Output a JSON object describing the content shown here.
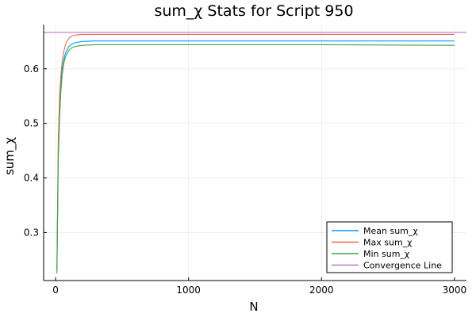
{
  "chart_data": {
    "type": "line",
    "title": "sum_χ Stats for Script 950",
    "xlabel": "N",
    "ylabel": "sum_χ",
    "xlim": [
      -90,
      3090
    ],
    "ylim": [
      0.212,
      0.681
    ],
    "xticks": [
      0,
      1000,
      2000,
      3000
    ],
    "xtick_labels": [
      "0",
      "1000",
      "2000",
      "3000"
    ],
    "yticks": [
      0.3,
      0.4,
      0.5,
      0.6
    ],
    "ytick_labels": [
      "0.3",
      "0.4",
      "0.5",
      "0.6"
    ],
    "grid": true,
    "legend_position": "bottom-right",
    "series": [
      {
        "name": "Mean sum_χ",
        "color": "#009AFA",
        "x": [
          10,
          20,
          30,
          40,
          50,
          60,
          70,
          80,
          100,
          120,
          150,
          200,
          300,
          500,
          1000,
          2000,
          3000
        ],
        "y": [
          0.23,
          0.45,
          0.53,
          0.575,
          0.6,
          0.615,
          0.625,
          0.632,
          0.641,
          0.645,
          0.648,
          0.65,
          0.651,
          0.651,
          0.651,
          0.651,
          0.651
        ]
      },
      {
        "name": "Max sum_χ",
        "color": "#E36F47",
        "x": [
          10,
          20,
          30,
          40,
          50,
          60,
          70,
          80,
          100,
          120,
          150,
          200,
          300,
          500,
          1000,
          2000,
          3000
        ],
        "y": [
          0.235,
          0.47,
          0.55,
          0.59,
          0.615,
          0.63,
          0.64,
          0.648,
          0.656,
          0.66,
          0.662,
          0.663,
          0.663,
          0.663,
          0.663,
          0.663,
          0.663
        ]
      },
      {
        "name": "Min sum_χ",
        "color": "#3EA44E",
        "x": [
          10,
          20,
          30,
          40,
          50,
          60,
          70,
          80,
          100,
          120,
          150,
          200,
          300,
          500,
          1000,
          2000,
          3000
        ],
        "y": [
          0.225,
          0.43,
          0.51,
          0.56,
          0.59,
          0.608,
          0.618,
          0.625,
          0.634,
          0.638,
          0.641,
          0.643,
          0.644,
          0.644,
          0.644,
          0.644,
          0.643
        ]
      },
      {
        "name": "Convergence Line",
        "color": "#C271D2",
        "x": [
          -90,
          3090
        ],
        "y": [
          0.6667,
          0.6667
        ]
      }
    ]
  }
}
